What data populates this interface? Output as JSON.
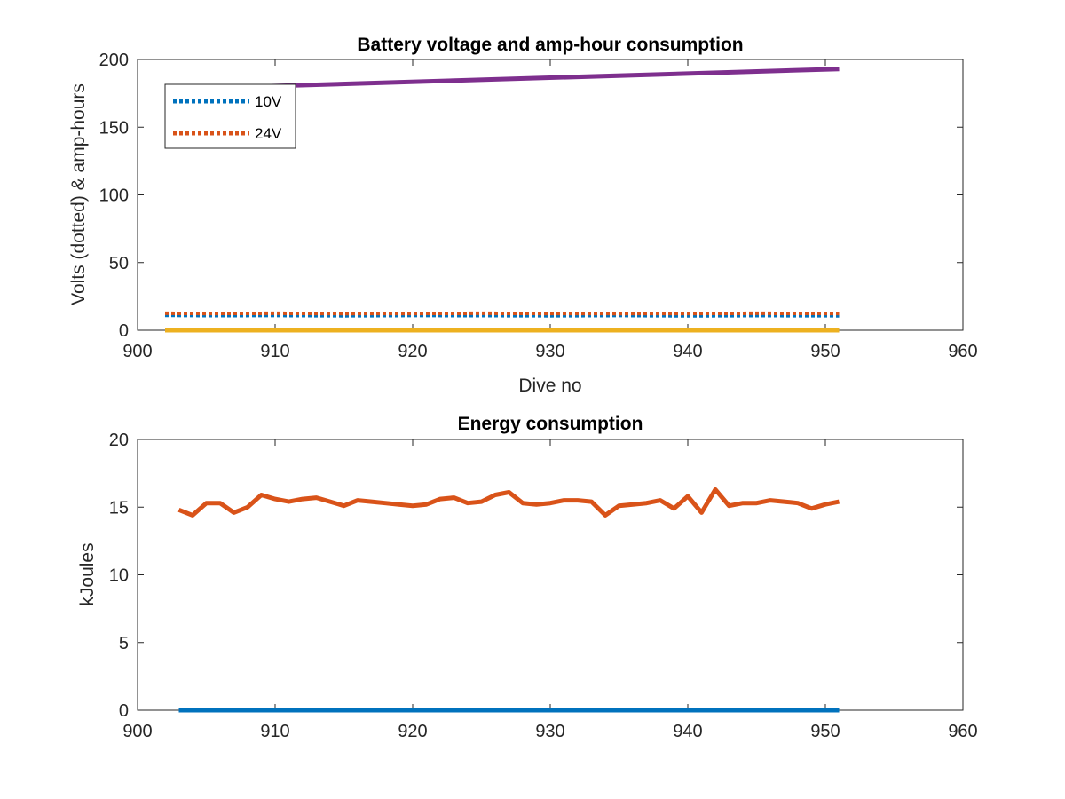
{
  "chart_data": [
    {
      "type": "line",
      "title": "Battery voltage and amp-hour consumption",
      "xlabel": "Dive no",
      "ylabel": "Volts (dotted) & amp-hours",
      "xlim": [
        900,
        960
      ],
      "ylim": [
        0,
        200
      ],
      "xticks": [
        900,
        910,
        920,
        930,
        940,
        950,
        960
      ],
      "yticks": [
        0,
        50,
        100,
        150,
        200
      ],
      "grid": false,
      "legend_position": "top-left",
      "series": [
        {
          "name": "10V",
          "style": "dotted",
          "color": "#0072BD",
          "x": [
            902,
            905,
            910,
            915,
            920,
            925,
            930,
            935,
            940,
            945,
            951
          ],
          "y": [
            11,
            10.8,
            10.9,
            10.7,
            10.9,
            10.8,
            10.7,
            10.9,
            10.6,
            10.8,
            10.7
          ]
        },
        {
          "name": "24V",
          "style": "dotted",
          "color": "#D95319",
          "x": [
            902,
            905,
            910,
            915,
            920,
            925,
            930,
            935,
            940,
            945,
            951
          ],
          "y": [
            12.5,
            12.4,
            12.5,
            12.3,
            12.4,
            12.5,
            12.4,
            12.3,
            12.4,
            12.5,
            12.4
          ]
        },
        {
          "style": "solid",
          "color": "#EDB120",
          "x": [
            902,
            951
          ],
          "y": [
            0,
            0
          ]
        },
        {
          "style": "solid",
          "color": "#7E2F8E",
          "x": [
            902,
            951
          ],
          "y": [
            178,
            193
          ]
        }
      ]
    },
    {
      "type": "line",
      "title": "Energy consumption",
      "xlabel": "",
      "ylabel": "kJoules",
      "xlim": [
        900,
        960
      ],
      "ylim": [
        0,
        20
      ],
      "xticks": [
        900,
        910,
        920,
        930,
        940,
        950,
        960
      ],
      "yticks": [
        0,
        5,
        10,
        15,
        20
      ],
      "grid": false,
      "series": [
        {
          "style": "solid",
          "color": "#0072BD",
          "x": [
            903,
            951
          ],
          "y": [
            0,
            0
          ]
        },
        {
          "style": "solid",
          "color": "#D95319",
          "x": [
            903,
            904,
            905,
            906,
            907,
            908,
            909,
            910,
            911,
            912,
            913,
            914,
            915,
            916,
            917,
            918,
            919,
            920,
            921,
            922,
            923,
            924,
            925,
            926,
            927,
            928,
            929,
            930,
            931,
            932,
            933,
            934,
            935,
            936,
            937,
            938,
            939,
            940,
            941,
            942,
            943,
            944,
            945,
            946,
            947,
            948,
            949,
            950,
            951
          ],
          "y": [
            14.8,
            14.4,
            15.3,
            15.3,
            14.6,
            15.0,
            15.9,
            15.6,
            15.4,
            15.6,
            15.7,
            15.4,
            15.1,
            15.5,
            15.4,
            15.3,
            15.2,
            15.1,
            15.2,
            15.6,
            15.7,
            15.3,
            15.4,
            15.9,
            16.1,
            15.3,
            15.2,
            15.3,
            15.5,
            15.5,
            15.4,
            14.4,
            15.1,
            15.2,
            15.3,
            15.5,
            14.9,
            15.8,
            14.6,
            16.3,
            15.1,
            15.3,
            15.3,
            15.5,
            15.4,
            15.3,
            14.9,
            15.2,
            15.4
          ]
        }
      ]
    }
  ]
}
